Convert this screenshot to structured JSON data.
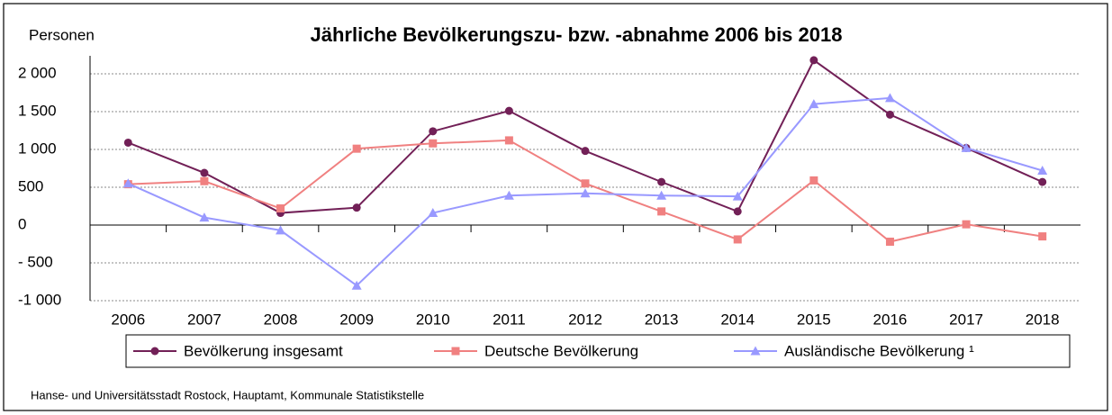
{
  "chart_data": {
    "type": "line",
    "title": "Jährliche Bevölkerungszu- bzw. -abnahme 2006 bis 2018",
    "y_label": "Personen",
    "source": "Hanse- und Universitätsstadt Rostock, Hauptamt, Kommunale Statistikstelle",
    "categories": [
      "2006",
      "2007",
      "2008",
      "2009",
      "2010",
      "2011",
      "2012",
      "2013",
      "2014",
      "2015",
      "2016",
      "2017",
      "2018"
    ],
    "series": [
      {
        "name": "Bevölkerung insgesamt",
        "color": "#722057",
        "marker": "circle",
        "values": [
          1090,
          690,
          160,
          230,
          1240,
          1510,
          980,
          570,
          180,
          2180,
          1460,
          1020,
          570
        ]
      },
      {
        "name": "Deutsche Bevölkerung",
        "color": "#f08080",
        "marker": "square",
        "values": [
          540,
          580,
          220,
          1010,
          1080,
          1120,
          550,
          180,
          -190,
          590,
          -220,
          10,
          -150
        ]
      },
      {
        "name": "Ausländische Bevölkerung ¹",
        "color": "#9999ff",
        "marker": "triangle",
        "values": [
          550,
          100,
          -70,
          -800,
          160,
          390,
          420,
          390,
          380,
          1600,
          1680,
          1020,
          720
        ]
      }
    ],
    "ylim": [
      -1000,
      2000
    ],
    "yticks": [
      {
        "value": -1000,
        "label": "-1 000"
      },
      {
        "value": -500,
        "label": "- 500"
      },
      0,
      500,
      {
        "value": 1000,
        "label": "1 000"
      },
      {
        "value": 1500,
        "label": "1 500"
      },
      {
        "value": 2000,
        "label": "2 000"
      }
    ],
    "grid": true,
    "legend": "bottom"
  }
}
